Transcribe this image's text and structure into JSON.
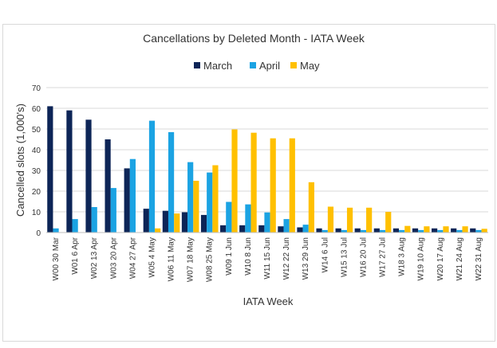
{
  "chart_data": {
    "type": "bar",
    "title": "Cancellations by Deleted Month - IATA Week",
    "xlabel": "IATA Week",
    "ylabel": "Cancelled slots (1,000's)",
    "ylim": [
      0,
      70
    ],
    "yticks": [
      0,
      10,
      20,
      30,
      40,
      50,
      60,
      70
    ],
    "grid": "horizontal",
    "legend_position": "top",
    "categories": [
      "W00  30 Mar",
      "W01  6 Apr",
      "W02  13 Apr",
      "W03  20 Apr",
      "W04  27 Apr",
      "W05  4 May",
      "W06  11 May",
      "W07  18 May",
      "W08  25 May",
      "W09  1 Jun",
      "W10  8 Jun",
      "W11  15 Jun",
      "W12  22 Jun",
      "W13  29 Jun",
      "W14  6 Jul",
      "W15  13 Jul",
      "W16  20 Jul",
      "W17  27 Jul",
      "W18  3 Aug",
      "W19  10 Aug",
      "W20  17 Aug",
      "W21  24 Aug",
      "W22  31 Aug"
    ],
    "series": [
      {
        "name": "March",
        "color": "#0d2557",
        "values": [
          61,
          59,
          54.5,
          45,
          31,
          11.5,
          10.5,
          9.8,
          8.5,
          3.5,
          3.5,
          3.5,
          3,
          2.5,
          2,
          2,
          2,
          2,
          2,
          2,
          2,
          2,
          2
        ]
      },
      {
        "name": "April",
        "color": "#1ba3e3",
        "values": [
          2,
          6.5,
          12.3,
          21.5,
          35.5,
          54,
          48.5,
          34,
          29,
          14.8,
          13.6,
          9.7,
          6.5,
          3.8,
          1.2,
          1.2,
          1.2,
          1.2,
          1.2,
          1.2,
          1.2,
          1.2,
          1.2
        ]
      },
      {
        "name": "May",
        "color": "#ffc000",
        "values": [
          0,
          0,
          0,
          0,
          0,
          2,
          9.2,
          25,
          32.5,
          49.8,
          48.2,
          45.5,
          45.5,
          24.3,
          12.5,
          12,
          12,
          10,
          3.2,
          3,
          3,
          3,
          1.8
        ]
      }
    ]
  }
}
